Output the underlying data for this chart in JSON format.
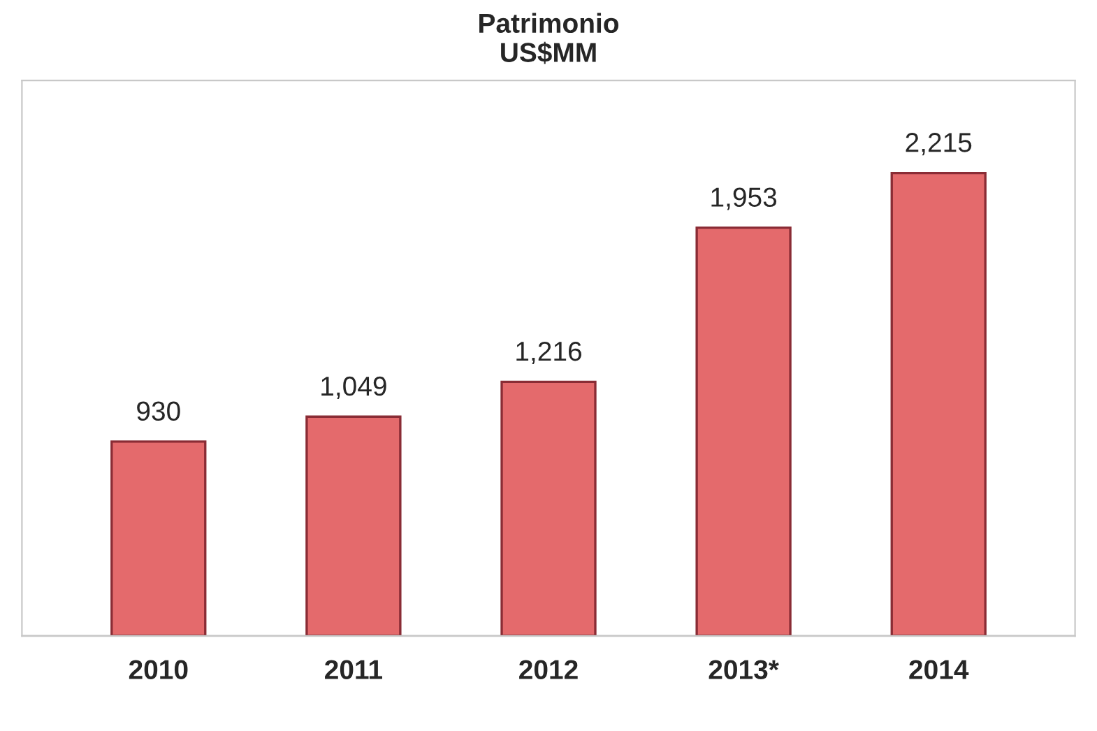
{
  "chart_data": {
    "type": "bar",
    "title": "Patrimonio",
    "subtitle": "US$MM",
    "categories": [
      "2010",
      "2011",
      "2012",
      "2013*",
      "2014"
    ],
    "values": [
      930,
      1049,
      1216,
      1953,
      2215
    ],
    "value_labels": [
      "930",
      "1,049",
      "1,216",
      "1,953",
      "2,215"
    ],
    "color": "#e46a6c",
    "grid": false,
    "legend": false
  }
}
